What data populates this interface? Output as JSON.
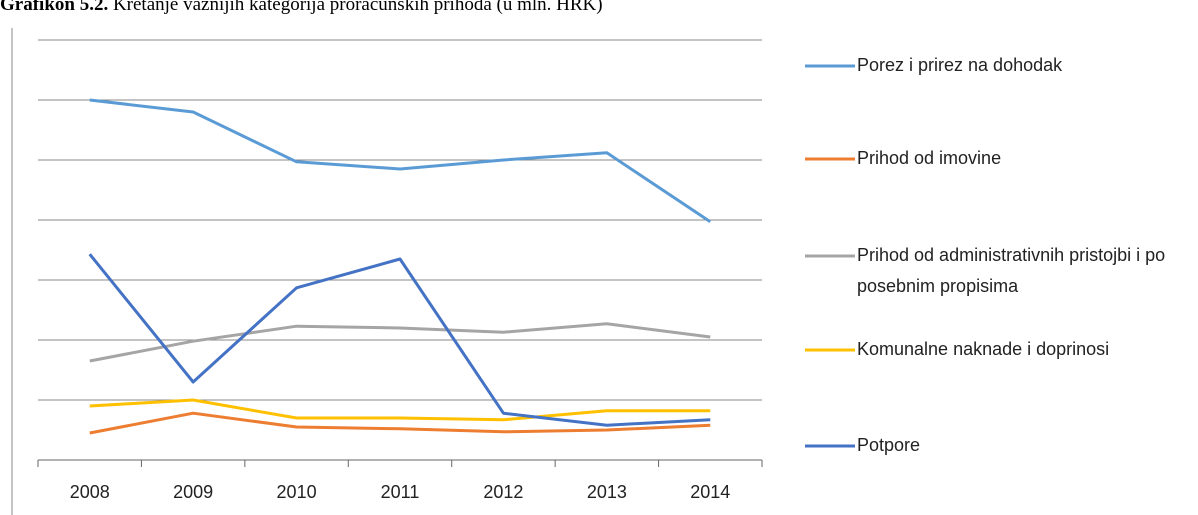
{
  "chart_data": {
    "type": "line",
    "title_label": "Grafikon 5.2.",
    "title": "Kretanje važnijih kategorija proračunskih prihoda (u mln. HRK)",
    "categories": [
      "2008",
      "2009",
      "2010",
      "2011",
      "2012",
      "2013",
      "2014"
    ],
    "ylim": [
      0,
      7
    ],
    "yticks": [
      0,
      1,
      2,
      3,
      4,
      5,
      6,
      7
    ],
    "grid": true,
    "series": [
      {
        "name": "Porez i prirez na dohodak",
        "color": "#5b9bd5",
        "values": [
          6.0,
          5.8,
          4.97,
          4.85,
          5.0,
          5.12,
          3.97
        ]
      },
      {
        "name": "Prihod od imovine",
        "color": "#ed7d31",
        "values": [
          0.45,
          0.78,
          0.55,
          0.52,
          0.47,
          0.5,
          0.58
        ]
      },
      {
        "name": "Prihod od administrativnih pristojbi i po posebnim propisima",
        "color": "#a5a5a5",
        "values": [
          1.65,
          1.98,
          2.23,
          2.2,
          2.13,
          2.27,
          2.05
        ]
      },
      {
        "name": "Komunalne naknade i doprinosi",
        "color": "#ffc000",
        "values": [
          0.9,
          1.0,
          0.7,
          0.7,
          0.67,
          0.82,
          0.82
        ]
      },
      {
        "name": "Potpore",
        "color": "#4472c4",
        "values": [
          3.43,
          1.3,
          2.87,
          3.35,
          0.78,
          0.58,
          0.67
        ]
      }
    ]
  }
}
